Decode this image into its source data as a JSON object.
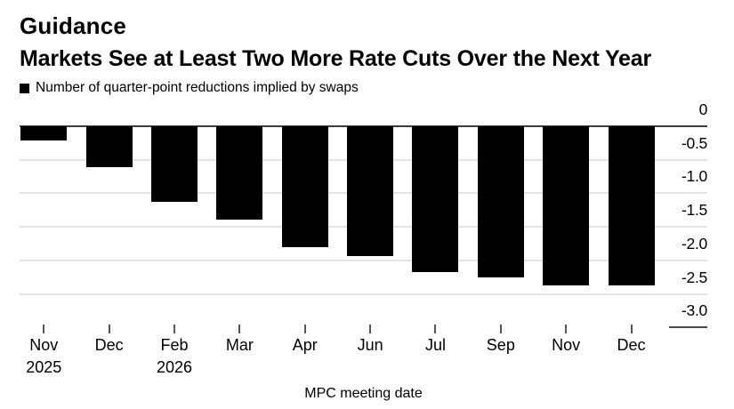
{
  "chart_data": {
    "type": "bar",
    "title": "Guidance",
    "subtitle": "Markets See at Least Two More Rate Cuts Over the Next Year",
    "legend_label": "Number of quarter-point reductions implied by swaps",
    "xlabel": "MPC meeting date",
    "ylabel": "",
    "categories": [
      "Nov",
      "Dec",
      "Feb",
      "Mar",
      "Apr",
      "Jun",
      "Jul",
      "Sep",
      "Nov",
      "Dec"
    ],
    "year_labels": [
      {
        "index": 0,
        "text": "2025"
      },
      {
        "index": 2,
        "text": "2026"
      }
    ],
    "values": [
      -0.21,
      -0.61,
      -1.13,
      -1.39,
      -1.81,
      -1.94,
      -2.18,
      -2.25,
      -2.37,
      -2.38
    ],
    "ylim": [
      -3.0,
      0
    ],
    "yticks": [
      {
        "value": 0,
        "label": "0"
      },
      {
        "value": -0.5,
        "label": "-0.5"
      },
      {
        "value": -1.0,
        "label": "-1.0"
      },
      {
        "value": -1.5,
        "label": "-1.5"
      },
      {
        "value": -2.0,
        "label": "-2.0"
      },
      {
        "value": -2.5,
        "label": "-2.5"
      },
      {
        "value": -3.0,
        "label": "-3.0"
      }
    ],
    "grid": true,
    "legend_position": "top-left",
    "colors": {
      "bar": "#000000",
      "gridline": "#e3e3e3",
      "zero_line": "#3d3d3d",
      "text": "#000000",
      "background": "#ffffff"
    }
  }
}
